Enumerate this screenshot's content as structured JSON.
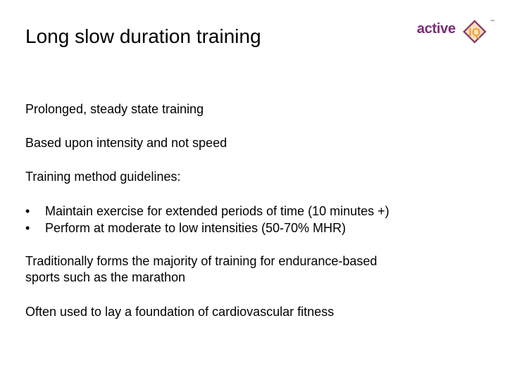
{
  "slide": {
    "title": "Long slow duration training",
    "logo": {
      "text": "active",
      "badge": "IQ",
      "tm": "™",
      "brand_color": "#7b2d7a",
      "accent_color": "#e8a33c"
    },
    "paragraphs": {
      "p1": "Prolonged, steady state training",
      "p2": "Based upon intensity and not speed",
      "p3": "Training method guidelines:",
      "p4_line1": "Traditionally forms the majority of training for endurance-based",
      "p4_line2": "sports such as the marathon",
      "p5": "Often used to lay a foundation of cardiovascular fitness"
    },
    "bullet_glyph": "•",
    "bullets": [
      "Maintain exercise for extended periods of time (10 minutes +)",
      "Perform at moderate to low intensities (50-70% MHR)"
    ]
  }
}
